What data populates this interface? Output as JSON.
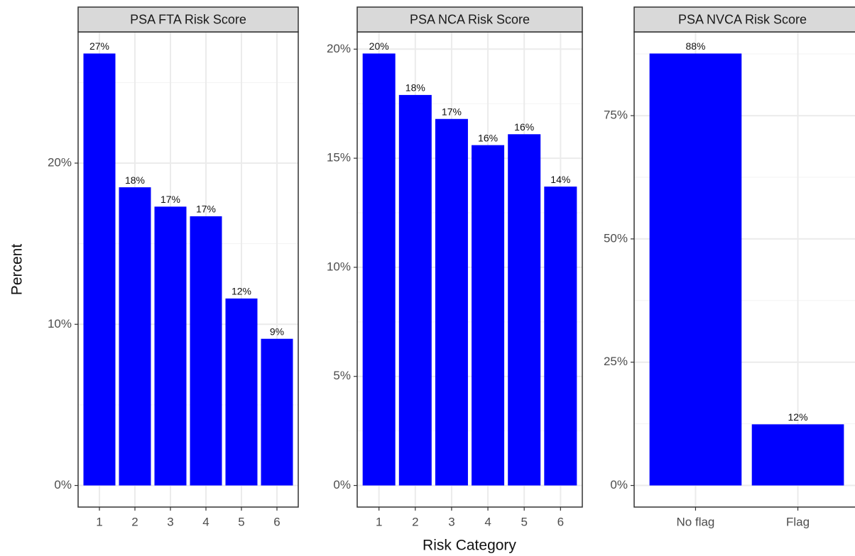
{
  "chart_data": [
    {
      "type": "bar",
      "title": "PSA FTA Risk Score",
      "ylabel": "Percent",
      "categories": [
        "1",
        "2",
        "3",
        "4",
        "5",
        "6"
      ],
      "values": [
        26.8,
        18.5,
        17.3,
        16.7,
        11.6,
        9.1
      ],
      "value_labels": [
        "27%",
        "18%",
        "17%",
        "17%",
        "12%",
        "9%"
      ],
      "color": "#0000ff",
      "ylim": [
        -1.34,
        28.14
      ],
      "yticks": [
        {
          "value": 0,
          "label": "0%"
        },
        {
          "value": 10,
          "label": "10%"
        },
        {
          "value": 20,
          "label": "20%"
        }
      ],
      "grid": true
    },
    {
      "type": "bar",
      "title": "PSA NCA Risk Score",
      "xlabel": "Risk Category",
      "categories": [
        "1",
        "2",
        "3",
        "4",
        "5",
        "6"
      ],
      "values": [
        19.8,
        17.9,
        16.8,
        15.6,
        16.1,
        13.7
      ],
      "value_labels": [
        "20%",
        "18%",
        "17%",
        "16%",
        "16%",
        "14%"
      ],
      "color": "#0000ff",
      "ylim": [
        -0.99,
        20.79
      ],
      "yticks": [
        {
          "value": 0,
          "label": "0%"
        },
        {
          "value": 5,
          "label": "5%"
        },
        {
          "value": 10,
          "label": "10%"
        },
        {
          "value": 15,
          "label": "15%"
        },
        {
          "value": 20,
          "label": "20%"
        }
      ],
      "grid": true
    },
    {
      "type": "bar",
      "title": "PSA NVCA Risk Score",
      "categories": [
        "No flag",
        "Flag"
      ],
      "values": [
        87.6,
        12.4
      ],
      "value_labels": [
        "88%",
        "12%"
      ],
      "color": "#0000ff",
      "ylim": [
        -4.38,
        91.98
      ],
      "yticks": [
        {
          "value": 0,
          "label": "0%"
        },
        {
          "value": 25,
          "label": "25%"
        },
        {
          "value": 50,
          "label": "50%"
        },
        {
          "value": 75,
          "label": "75%"
        }
      ],
      "grid": true
    }
  ]
}
